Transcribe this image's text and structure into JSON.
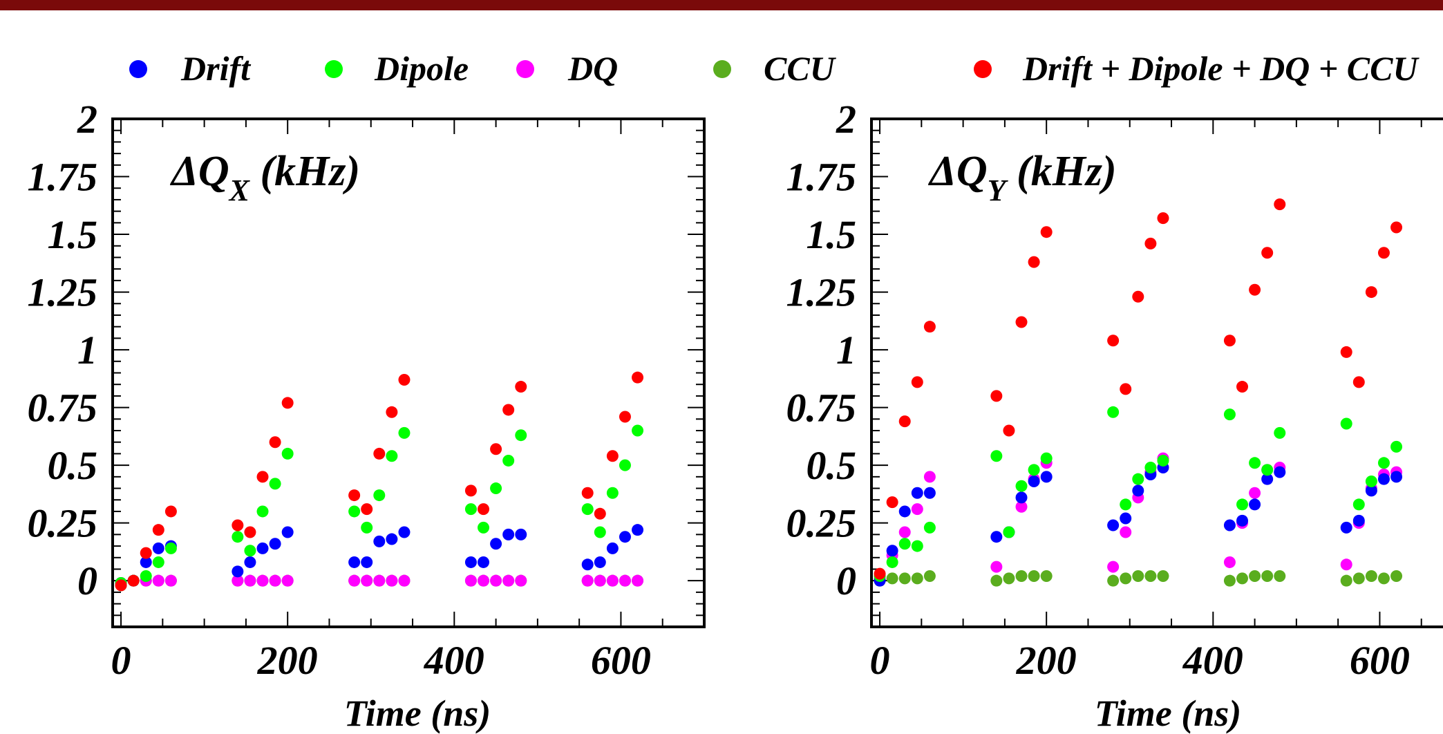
{
  "colors": {
    "banner": "#7a0a0a",
    "drift": "#0000ff",
    "dipole": "#00ff00",
    "dq": "#ff00ff",
    "ccu": "#5aad1e",
    "total": "#ff0000"
  },
  "legend": [
    {
      "label": "Drift",
      "color": "#0000ff"
    },
    {
      "label": "Dipole",
      "color": "#00ff00"
    },
    {
      "label": "DQ",
      "color": "#ff00ff"
    },
    {
      "label": "CCU",
      "color": "#5aad1e"
    },
    {
      "label": "Drift + Dipole + DQ + CCU",
      "color": "#ff0000"
    }
  ],
  "chart_data": [
    {
      "type": "scatter",
      "title_main": "ΔQ",
      "title_sub": "X",
      "title_unit": " (kHz)",
      "xlabel": "Time (ns)",
      "xlim": [
        -10,
        700
      ],
      "ylim": [
        -0.2,
        2.0
      ],
      "x_ticks": [
        "0",
        "200",
        "400",
        "600"
      ],
      "x_tick_values": [
        0,
        200,
        400,
        600
      ],
      "y_ticks": [
        "0",
        "0.25",
        "0.5",
        "0.75",
        "1",
        "1.25",
        "1.5",
        "1.75",
        "2"
      ],
      "y_tick_values": [
        0,
        0.25,
        0.5,
        0.75,
        1,
        1.25,
        1.5,
        1.75,
        2
      ],
      "x": [
        0,
        15,
        30,
        45,
        60,
        140,
        155,
        170,
        185,
        200,
        280,
        295,
        310,
        325,
        340,
        420,
        435,
        450,
        465,
        480,
        560,
        575,
        590,
        605,
        620
      ],
      "series": [
        {
          "name": "Drift",
          "values": [
            -0.01,
            0.0,
            0.08,
            0.14,
            0.15,
            0.04,
            0.08,
            0.14,
            0.16,
            0.21,
            0.08,
            0.08,
            0.17,
            0.18,
            0.21,
            0.08,
            0.08,
            0.16,
            0.2,
            0.2,
            0.07,
            0.08,
            0.14,
            0.19,
            0.22
          ]
        },
        {
          "name": "Dipole",
          "values": [
            -0.01,
            0.0,
            0.02,
            0.08,
            0.14,
            0.19,
            0.13,
            0.3,
            0.42,
            0.55,
            0.3,
            0.23,
            0.37,
            0.54,
            0.64,
            0.31,
            0.23,
            0.4,
            0.52,
            0.63,
            0.31,
            0.21,
            0.38,
            0.5,
            0.65
          ]
        },
        {
          "name": "DQ",
          "values": [
            -0.01,
            0.0,
            0.0,
            0.0,
            0.0,
            0.0,
            0.0,
            0.0,
            0.0,
            0.0,
            0.0,
            0.0,
            0.0,
            0.0,
            0.0,
            0.0,
            0.0,
            0.0,
            0.0,
            0.0,
            0.0,
            0.0,
            0.0,
            0.0,
            0.0
          ]
        },
        {
          "name": "CCU",
          "values": [
            -0.02,
            0.0,
            0.0,
            0.0,
            0.0,
            0.0,
            0.0,
            0.0,
            0.0,
            0.0,
            0.0,
            0.0,
            0.0,
            0.0,
            0.0,
            0.0,
            0.0,
            0.0,
            0.0,
            0.0,
            0.0,
            0.0,
            0.0,
            0.0,
            0.0
          ]
        },
        {
          "name": "Drift + Dipole + DQ + CCU",
          "values": [
            -0.02,
            0.0,
            0.12,
            0.22,
            0.3,
            0.24,
            0.21,
            0.45,
            0.6,
            0.77,
            0.37,
            0.31,
            0.55,
            0.73,
            0.87,
            0.39,
            0.31,
            0.57,
            0.74,
            0.84,
            0.38,
            0.29,
            0.54,
            0.71,
            0.88
          ]
        }
      ]
    },
    {
      "type": "scatter",
      "title_main": "ΔQ",
      "title_sub": "Y",
      "title_unit": " (kHz)",
      "xlabel": "Time (ns)",
      "xlim": [
        -10,
        700
      ],
      "ylim": [
        -0.2,
        2.0
      ],
      "x_ticks": [
        "0",
        "200",
        "400",
        "600"
      ],
      "x_tick_values": [
        0,
        200,
        400,
        600
      ],
      "y_ticks": [
        "0",
        "0.25",
        "0.5",
        "0.75",
        "1",
        "1.25",
        "1.5",
        "1.75",
        "2"
      ],
      "y_tick_values": [
        0,
        0.25,
        0.5,
        0.75,
        1,
        1.25,
        1.5,
        1.75,
        2
      ],
      "x": [
        0,
        15,
        30,
        45,
        60,
        140,
        155,
        170,
        185,
        200,
        280,
        295,
        310,
        325,
        340,
        420,
        435,
        450,
        465,
        480,
        560,
        575,
        590,
        605,
        620
      ],
      "series": [
        {
          "name": "Drift",
          "values": [
            0.0,
            0.13,
            0.3,
            0.38,
            0.38,
            0.19,
            0.21,
            0.36,
            0.43,
            0.45,
            0.24,
            0.27,
            0.39,
            0.46,
            0.49,
            0.24,
            0.26,
            0.33,
            0.44,
            0.47,
            0.23,
            0.26,
            0.39,
            0.44,
            0.45
          ]
        },
        {
          "name": "Dipole",
          "values": [
            0.02,
            0.08,
            0.16,
            0.15,
            0.23,
            0.54,
            0.21,
            0.41,
            0.48,
            0.53,
            0.73,
            0.33,
            0.44,
            0.49,
            0.52,
            0.72,
            0.33,
            0.51,
            0.48,
            0.64,
            0.68,
            0.33,
            0.43,
            0.51,
            0.58
          ]
        },
        {
          "name": "DQ",
          "values": [
            0.01,
            0.11,
            0.21,
            0.31,
            0.45,
            0.06,
            0.21,
            0.32,
            0.44,
            0.51,
            0.06,
            0.21,
            0.36,
            0.47,
            0.53,
            0.08,
            0.25,
            0.38,
            0.48,
            0.49,
            0.07,
            0.25,
            0.4,
            0.46,
            0.47
          ]
        },
        {
          "name": "CCU",
          "values": [
            0.0,
            0.01,
            0.01,
            0.01,
            0.02,
            0.0,
            0.01,
            0.02,
            0.02,
            0.02,
            0.0,
            0.01,
            0.02,
            0.02,
            0.02,
            0.0,
            0.01,
            0.02,
            0.02,
            0.02,
            0.0,
            0.01,
            0.02,
            0.01,
            0.02
          ]
        },
        {
          "name": "Drift + Dipole + DQ + CCU",
          "values": [
            0.03,
            0.34,
            0.69,
            0.86,
            1.1,
            0.8,
            0.65,
            1.12,
            1.38,
            1.51,
            1.04,
            0.83,
            1.23,
            1.46,
            1.57,
            1.04,
            0.84,
            1.26,
            1.42,
            1.63,
            0.99,
            0.86,
            1.25,
            1.42,
            1.53
          ]
        }
      ]
    }
  ]
}
